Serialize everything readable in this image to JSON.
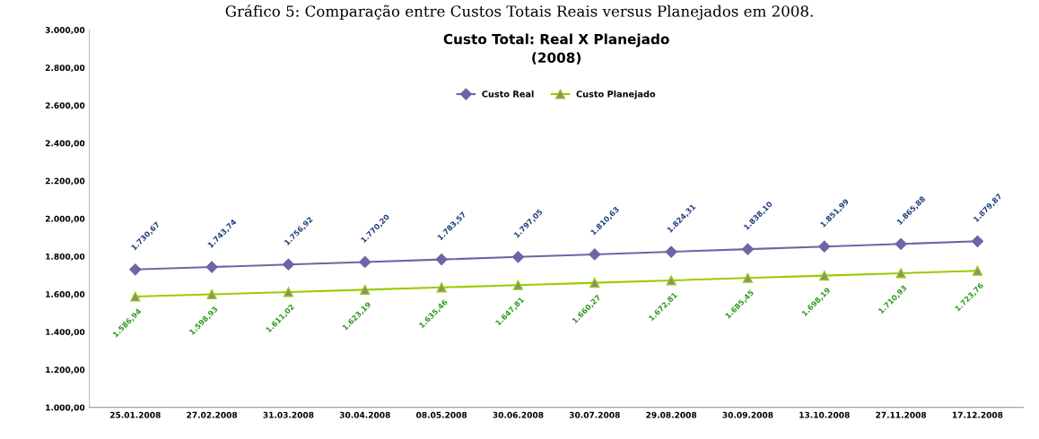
{
  "chart_data": {
    "type": "line",
    "title": "Custo Total: Real X Planejado\n(2008)",
    "annotations": [
      "Gráfico 5: Comparação entre Custos Totais Reais versus Planejados em 2008."
    ],
    "categories": [
      "25.01.2008",
      "27.02.2008",
      "31.03.2008",
      "30.04.2008",
      "08.05.2008",
      "30.06.2008",
      "30.07.2008",
      "29.08.2008",
      "30.09.2008",
      "13.10.2008",
      "27.11.2008",
      "17.12.2008"
    ],
    "series": [
      {
        "name": "Custo Real",
        "color": "#6b66a6",
        "marker": "diamond",
        "values": [
          1730.67,
          1743.74,
          1756.92,
          1770.2,
          1783.57,
          1797.05,
          1810.63,
          1824.31,
          1838.1,
          1851.99,
          1865.88,
          1879.87
        ],
        "value_labels": [
          "1.730,67",
          "1.743,74",
          "1.756,92",
          "1.770,20",
          "1.783,57",
          "1.797,05",
          "1.810,63",
          "1.824,31",
          "1.838,10",
          "1.851,99",
          "1.865,88",
          "1.879,87"
        ]
      },
      {
        "name": "Custo Planejado",
        "color": "#99cc00",
        "marker": "triangle",
        "values": [
          1586.94,
          1598.93,
          1611.02,
          1623.19,
          1635.46,
          1647.81,
          1660.27,
          1672.81,
          1685.45,
          1698.19,
          1710.93,
          1723.76
        ],
        "value_labels": [
          "1.586,94",
          "1.598,93",
          "1.611,02",
          "1.623,19",
          "1.635,46",
          "1.647,81",
          "1.660,27",
          "1.672,81",
          "1.685,45",
          "1.698,19",
          "1.710,93",
          "1.723,76"
        ]
      }
    ],
    "ylim": [
      1000,
      3000
    ],
    "yticks": [
      {
        "value": 1000,
        "label": "1.000,00"
      },
      {
        "value": 1200,
        "label": "1.200,00"
      },
      {
        "value": 1400,
        "label": "1.400,00"
      },
      {
        "value": 1600,
        "label": "1.600,00"
      },
      {
        "value": 1800,
        "label": "1.800,00"
      },
      {
        "value": 2000,
        "label": "2.000,00"
      },
      {
        "value": 2200,
        "label": "2.200,00"
      },
      {
        "value": 2400,
        "label": "2.400,00"
      },
      {
        "value": 2600,
        "label": "2.600,00"
      },
      {
        "value": 2800,
        "label": "2.800,00"
      },
      {
        "value": 3000,
        "label": "3.000,00"
      }
    ],
    "grid": false,
    "legend": "top",
    "line_style": "solid"
  }
}
